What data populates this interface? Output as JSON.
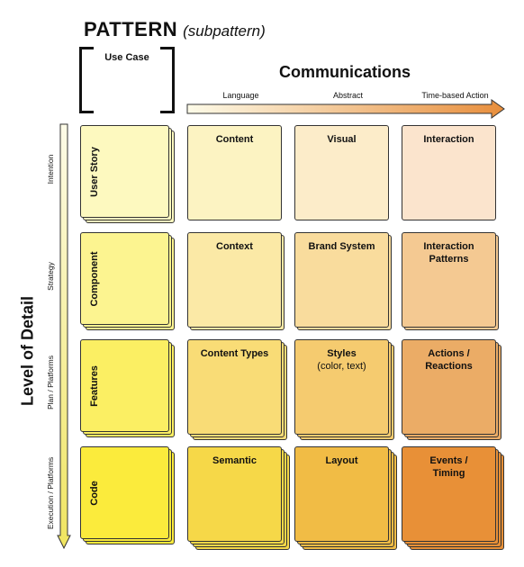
{
  "title": {
    "main": "PATTERN",
    "sub": "(subpattern)"
  },
  "use_case_label": "Use Case",
  "communications": {
    "title": "Communications",
    "columns": [
      "Language",
      "Abstract",
      "Time-based Action"
    ]
  },
  "level_of_detail": {
    "title": "Level of Detail",
    "rows": [
      "Intention",
      "Strategy",
      "Plan / Platforms",
      "Execution / Platforms"
    ]
  },
  "use_cases": [
    "User Story",
    "Component",
    "Features",
    "Code"
  ],
  "grid": [
    [
      {
        "label": "Content"
      },
      {
        "label": "Visual"
      },
      {
        "label": "Interaction"
      }
    ],
    [
      {
        "label": "Context"
      },
      {
        "label": "Brand System"
      },
      {
        "label": "Interaction\nPatterns"
      }
    ],
    [
      {
        "label": "Content Types"
      },
      {
        "label": "Styles",
        "note": "(color, text)"
      },
      {
        "label": "Actions /\nReactions"
      }
    ],
    [
      {
        "label": "Semantic"
      },
      {
        "label": "Layout"
      },
      {
        "label": "Events /\nTiming"
      }
    ]
  ],
  "colors": {
    "use_case": [
      "#fdf9bf",
      "#fcf490",
      "#fbef63",
      "#fbeb3c"
    ],
    "grid": [
      [
        "#fcf3c2",
        "#fcecc9",
        "#fbe4cd"
      ],
      [
        "#fbe9a6",
        "#f9dc9d",
        "#f4c992"
      ],
      [
        "#f9dc76",
        "#f5cb6f",
        "#ebac66"
      ],
      [
        "#f6d848",
        "#f1bc45",
        "#e89037"
      ]
    ]
  }
}
